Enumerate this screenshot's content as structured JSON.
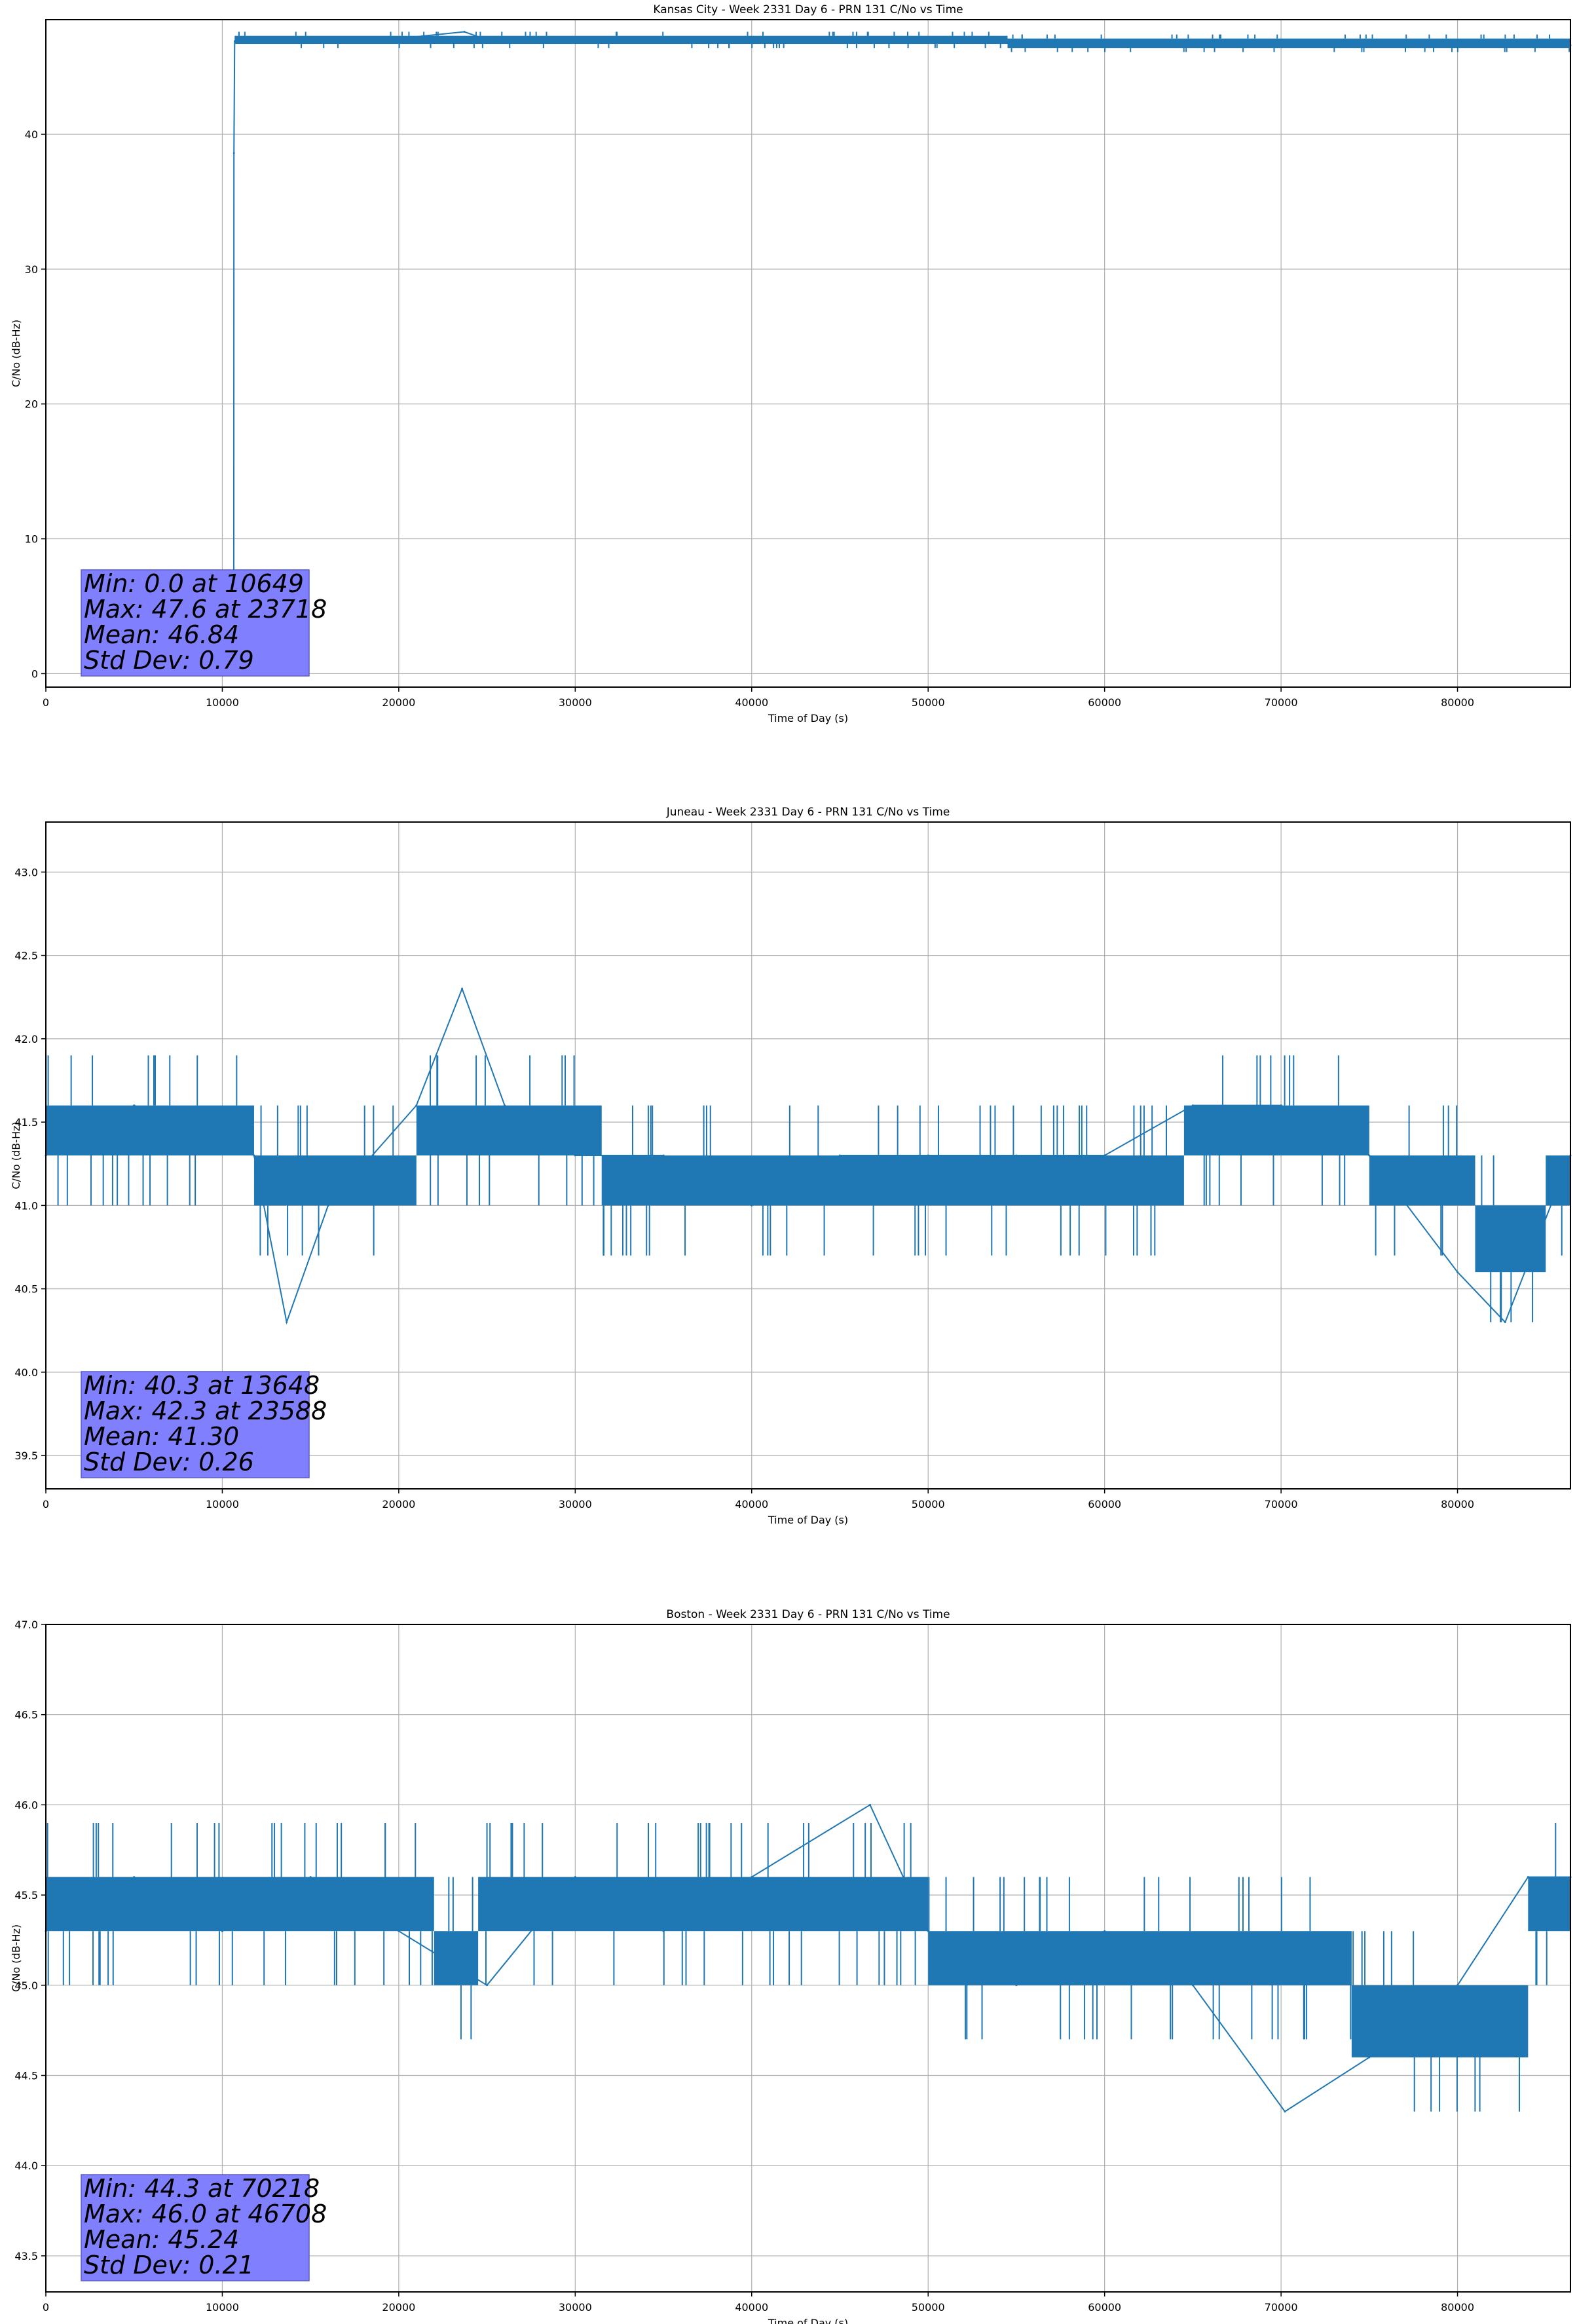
{
  "chart_data": [
    {
      "type": "line",
      "title": "Kansas City - Week 2331 Day 6 - PRN 131 C/No vs Time",
      "xlabel": "Time of Day (s)",
      "ylabel": "C/No (dB-Hz)",
      "xlim": [
        0,
        86400
      ],
      "ylim": [
        -1,
        48.5
      ],
      "xticks": [
        0,
        10000,
        20000,
        30000,
        40000,
        50000,
        60000,
        70000,
        80000
      ],
      "xtick_labels": [
        "0",
        "10000",
        "20000",
        "30000",
        "40000",
        "50000",
        "60000",
        "70000",
        "80000"
      ],
      "yticks": [
        0,
        10,
        20,
        30,
        40
      ],
      "ytick_labels": [
        "0",
        "10",
        "20",
        "30",
        "40"
      ],
      "grid": true,
      "line_color": "#1f77b4",
      "series": [
        {
          "values_description": "dense",
          "x": [
            10649,
            10660,
            10700,
            11500,
            15000,
            20000,
            23718,
            25000,
            30000,
            35000,
            40000,
            45000,
            50000,
            55000,
            60000,
            65000,
            70000,
            75000,
            80000,
            86400
          ],
          "y": [
            0.0,
            38.6,
            46.9,
            47.1,
            47.0,
            47.1,
            47.6,
            47.0,
            47.1,
            47.0,
            47.1,
            47.2,
            47.0,
            46.8,
            46.9,
            46.7,
            46.6,
            46.6,
            46.6,
            46.6
          ],
          "band": [
            [
              10700,
              54500,
              46.7,
              47.3
            ],
            [
              54500,
              86400,
              46.4,
              47.1
            ]
          ]
        }
      ],
      "stats": {
        "min_line": "Min: 0.0 at 10649",
        "max_line": "Max: 47.6 at 23718",
        "mean_line": "Mean: 46.84",
        "std_line": "Std Dev: 0.79"
      }
    },
    {
      "type": "line",
      "title": "Juneau - Week 2331 Day 6 - PRN 131 C/No vs Time",
      "xlabel": "Time of Day (s)",
      "ylabel": "C/No (dB-Hz)",
      "xlim": [
        0,
        86400
      ],
      "ylim": [
        39.3,
        43.3
      ],
      "xticks": [
        0,
        10000,
        20000,
        30000,
        40000,
        50000,
        60000,
        70000,
        80000
      ],
      "xtick_labels": [
        "0",
        "10000",
        "20000",
        "30000",
        "40000",
        "50000",
        "60000",
        "70000",
        "80000"
      ],
      "yticks": [
        39.5,
        40.0,
        40.5,
        41.0,
        41.5,
        42.0,
        42.5,
        43.0
      ],
      "ytick_labels": [
        "39.5",
        "40.0",
        "40.5",
        "41.0",
        "41.5",
        "42.0",
        "42.5",
        "43.0"
      ],
      "grid": true,
      "line_color": "#1f77b4",
      "series": [
        {
          "values_description": "dense",
          "x": [
            0,
            5000,
            11800,
            13648,
            16000,
            21000,
            23588,
            26000,
            30000,
            35000,
            40000,
            45000,
            50000,
            55000,
            60000,
            65000,
            70000,
            75000,
            80000,
            82700,
            86400
          ],
          "y": [
            41.3,
            41.6,
            41.3,
            40.3,
            41.0,
            41.6,
            42.3,
            41.6,
            41.3,
            41.3,
            41.0,
            41.3,
            41.3,
            41.3,
            41.3,
            41.6,
            41.6,
            41.3,
            40.6,
            40.3,
            41.3
          ],
          "band": [
            [
              0,
              11800,
              41.3,
              41.6
            ],
            [
              11800,
              21000,
              41.0,
              41.3
            ],
            [
              21000,
              31500,
              41.3,
              41.6
            ],
            [
              31500,
              64500,
              41.0,
              41.3
            ],
            [
              64500,
              75000,
              41.3,
              41.6
            ],
            [
              75000,
              81000,
              41.0,
              41.3
            ],
            [
              81000,
              85000,
              40.6,
              41.0
            ],
            [
              85000,
              86400,
              41.0,
              41.3
            ]
          ]
        }
      ],
      "stats": {
        "min_line": "Min: 40.3 at 13648",
        "max_line": "Max: 42.3 at 23588",
        "mean_line": "Mean: 41.30",
        "std_line": "Std Dev: 0.26"
      }
    },
    {
      "type": "line",
      "title": "Boston - Week 2331 Day 6 - PRN 131 C/No vs Time",
      "xlabel": "Time of Day (s)",
      "ylabel": "C/No (dB-Hz)",
      "xlim": [
        0,
        86400
      ],
      "ylim": [
        43.3,
        47.0
      ],
      "xticks": [
        0,
        10000,
        20000,
        30000,
        40000,
        50000,
        60000,
        70000,
        80000
      ],
      "xtick_labels": [
        "0",
        "10000",
        "20000",
        "30000",
        "40000",
        "50000",
        "60000",
        "70000",
        "80000"
      ],
      "yticks": [
        43.5,
        44.0,
        44.5,
        45.0,
        45.5,
        46.0,
        46.5,
        47.0
      ],
      "ytick_labels": [
        "43.5",
        "44.0",
        "44.5",
        "45.0",
        "45.5",
        "46.0",
        "46.5",
        "47.0"
      ],
      "grid": true,
      "line_color": "#1f77b4",
      "series": [
        {
          "values_description": "dense",
          "x": [
            0,
            5000,
            10000,
            15000,
            20000,
            25000,
            30000,
            35000,
            40000,
            46708,
            50000,
            55000,
            60000,
            65000,
            70218,
            75000,
            80000,
            84000,
            86400
          ],
          "y": [
            45.3,
            45.6,
            45.3,
            45.6,
            45.3,
            45.0,
            45.6,
            45.3,
            45.6,
            46.0,
            45.3,
            45.0,
            45.3,
            45.0,
            44.3,
            44.6,
            45.0,
            45.6,
            45.6
          ],
          "band": [
            [
              0,
              22000,
              45.3,
              45.6
            ],
            [
              22000,
              24500,
              45.0,
              45.3
            ],
            [
              24500,
              50000,
              45.3,
              45.6
            ],
            [
              50000,
              74000,
              45.0,
              45.3
            ],
            [
              74000,
              84000,
              44.6,
              45.0
            ],
            [
              84000,
              86400,
              45.3,
              45.6
            ]
          ]
        }
      ],
      "stats": {
        "min_line": "Min: 44.3 at 70218",
        "max_line": "Max: 46.0 at 46708",
        "mean_line": "Mean: 45.24",
        "std_line": "Std Dev: 0.21"
      }
    }
  ]
}
